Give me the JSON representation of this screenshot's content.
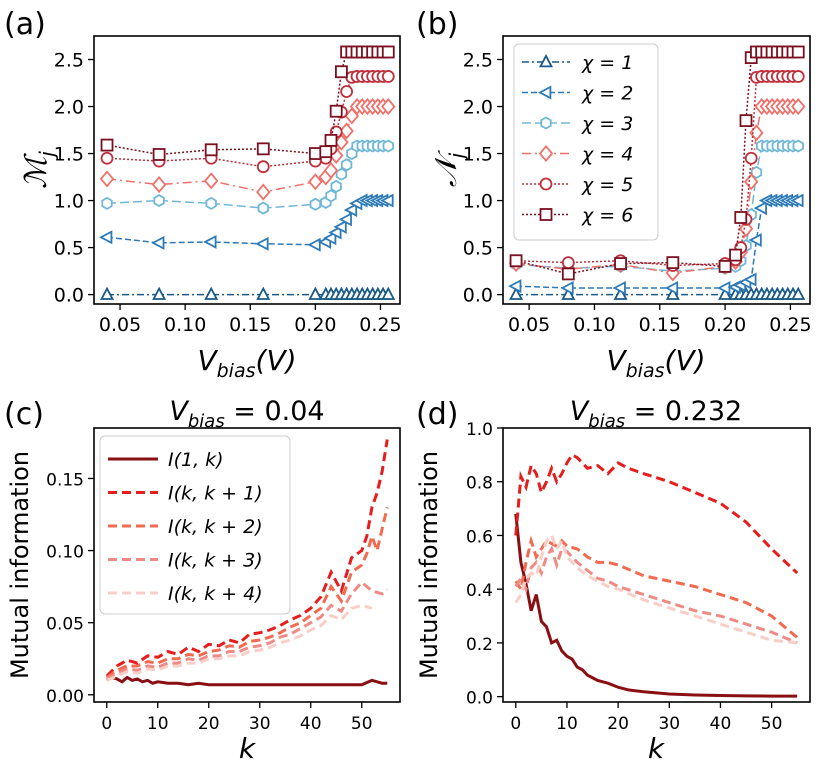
{
  "panel_labels": [
    "(a)",
    "(b)",
    "(c)",
    "(d)"
  ],
  "chart_data": [
    {
      "panel": "(a)",
      "type": "line",
      "xlabel": "V_bias(V)",
      "ylabel": "M_j",
      "xlim": [
        0.03,
        0.265
      ],
      "ylim": [
        -0.1,
        2.75
      ],
      "xticks": [
        0.05,
        0.1,
        0.15,
        0.2,
        0.25
      ],
      "xtick_labels": [
        "0.05",
        "0.10",
        "0.15",
        "0.20",
        "0.25"
      ],
      "yticks": [
        0.0,
        0.5,
        1.0,
        1.5,
        2.0,
        2.5
      ],
      "ytick_labels": [
        "0.0",
        "0.5",
        "1.0",
        "1.5",
        "2.0",
        "2.5"
      ],
      "x": [
        0.04,
        0.08,
        0.12,
        0.16,
        0.2,
        0.208,
        0.212,
        0.216,
        0.22,
        0.224,
        0.228,
        0.232,
        0.236,
        0.24,
        0.244,
        0.248,
        0.252,
        0.256
      ],
      "series": [
        {
          "name": "χ = 1",
          "color": "#1a5a86",
          "dash": "7,3,2,3",
          "marker": "triangle-up",
          "values": [
            0.0,
            0.0,
            0.0,
            0.0,
            0.0,
            0.0,
            0.0,
            0.0,
            0.0,
            0.0,
            0.0,
            0.0,
            0.0,
            0.0,
            0.0,
            0.0,
            0.0,
            0.0
          ]
        },
        {
          "name": "χ = 2",
          "color": "#2c7ab8",
          "dash": "6,3",
          "marker": "triangle-left",
          "values": [
            0.61,
            0.55,
            0.56,
            0.54,
            0.53,
            0.56,
            0.6,
            0.66,
            0.72,
            0.8,
            0.9,
            0.97,
            1.0,
            1.0,
            1.0,
            1.0,
            1.0,
            1.0
          ]
        },
        {
          "name": "χ = 3",
          "color": "#70b8d8",
          "dash": "9,4",
          "marker": "hexagon",
          "values": [
            0.97,
            1.0,
            0.97,
            0.92,
            0.96,
            0.98,
            1.05,
            1.15,
            1.28,
            1.38,
            1.5,
            1.58,
            1.58,
            1.58,
            1.58,
            1.58,
            1.58,
            1.58
          ]
        },
        {
          "name": "χ = 4",
          "color": "#f0706a",
          "dash": "9,4,2,4",
          "marker": "diamond",
          "values": [
            1.23,
            1.17,
            1.21,
            1.09,
            1.2,
            1.25,
            1.32,
            1.48,
            1.62,
            1.74,
            1.9,
            2.0,
            2.0,
            2.0,
            2.0,
            2.0,
            2.0,
            2.0
          ]
        },
        {
          "name": "χ = 5",
          "color": "#c02f3c",
          "dash": "2,2",
          "marker": "circle",
          "values": [
            1.45,
            1.42,
            1.45,
            1.36,
            1.42,
            1.45,
            1.55,
            1.73,
            1.94,
            2.16,
            2.31,
            2.32,
            2.32,
            2.32,
            2.32,
            2.32,
            2.32,
            2.32
          ]
        },
        {
          "name": "χ = 6",
          "color": "#7a1020",
          "dash": "2,2",
          "marker": "square",
          "values": [
            1.59,
            1.49,
            1.54,
            1.55,
            1.5,
            1.52,
            1.64,
            1.95,
            2.37,
            2.58,
            2.58,
            2.58,
            2.58,
            2.58,
            2.58,
            2.58,
            2.58,
            2.58
          ]
        }
      ]
    },
    {
      "panel": "(b)",
      "type": "line",
      "xlabel": "V_bias(V)",
      "ylabel": "N_j",
      "xlim": [
        0.03,
        0.265
      ],
      "ylim": [
        -0.1,
        2.75
      ],
      "xticks": [
        0.05,
        0.1,
        0.15,
        0.2,
        0.25
      ],
      "xtick_labels": [
        "0.05",
        "0.10",
        "0.15",
        "0.20",
        "0.25"
      ],
      "yticks": [
        0.0,
        0.5,
        1.0,
        1.5,
        2.0,
        2.5
      ],
      "ytick_labels": [
        "0.0",
        "0.5",
        "1.0",
        "1.5",
        "2.0",
        "2.5"
      ],
      "legend_position": "top-left",
      "x": [
        0.04,
        0.08,
        0.12,
        0.16,
        0.2,
        0.208,
        0.212,
        0.216,
        0.22,
        0.224,
        0.228,
        0.232,
        0.236,
        0.24,
        0.244,
        0.248,
        0.252,
        0.256
      ],
      "series": [
        {
          "name": "χ = 1",
          "color": "#1a5a86",
          "dash": "7,3,2,3",
          "marker": "triangle-up",
          "values": [
            0.0,
            0.0,
            0.0,
            0.0,
            0.0,
            0.0,
            0.0,
            0.0,
            0.0,
            0.0,
            0.0,
            0.0,
            0.0,
            0.0,
            0.0,
            0.0,
            0.0,
            0.0
          ]
        },
        {
          "name": "χ = 2",
          "color": "#2c7ab8",
          "dash": "6,3",
          "marker": "triangle-left",
          "values": [
            0.09,
            0.07,
            0.07,
            0.07,
            0.07,
            0.08,
            0.1,
            0.13,
            0.16,
            0.58,
            0.92,
            1.0,
            1.0,
            1.0,
            1.0,
            1.0,
            1.0,
            1.0
          ]
        },
        {
          "name": "χ = 3",
          "color": "#70b8d8",
          "dash": "9,4",
          "marker": "hexagon",
          "values": [
            0.32,
            0.28,
            0.3,
            0.25,
            0.28,
            0.3,
            0.36,
            0.52,
            0.85,
            1.3,
            1.58,
            1.58,
            1.58,
            1.58,
            1.58,
            1.58,
            1.58,
            1.58
          ]
        },
        {
          "name": "χ = 4",
          "color": "#f0706a",
          "dash": "9,4,2,4",
          "marker": "diamond",
          "values": [
            0.33,
            0.27,
            0.32,
            0.23,
            0.3,
            0.35,
            0.45,
            0.7,
            1.2,
            1.72,
            2.0,
            2.0,
            2.0,
            2.0,
            2.0,
            2.0,
            2.0,
            2.0
          ]
        },
        {
          "name": "χ = 5",
          "color": "#c02f3c",
          "dash": "2,2",
          "marker": "circle",
          "values": [
            0.36,
            0.34,
            0.36,
            0.31,
            0.33,
            0.37,
            0.5,
            0.8,
            1.45,
            2.31,
            2.32,
            2.32,
            2.32,
            2.32,
            2.32,
            2.32,
            2.32,
            2.32
          ]
        },
        {
          "name": "χ = 6",
          "color": "#7a1020",
          "dash": "2,2",
          "marker": "square",
          "values": [
            0.36,
            0.22,
            0.33,
            0.34,
            0.3,
            0.42,
            0.82,
            1.85,
            2.52,
            2.58,
            2.58,
            2.58,
            2.58,
            2.58,
            2.58,
            2.58,
            2.58,
            2.58
          ]
        }
      ]
    },
    {
      "panel": "(c)",
      "type": "line",
      "title": "V_bias = 0.04",
      "xlabel": "k",
      "ylabel": "Mutual information",
      "xlim": [
        -2.5,
        57.5
      ],
      "ylim": [
        -0.005,
        0.185
      ],
      "xticks": [
        0,
        10,
        20,
        30,
        40,
        50
      ],
      "xtick_labels": [
        "0",
        "10",
        "20",
        "30",
        "40",
        "50"
      ],
      "yticks": [
        0.0,
        0.05,
        0.1,
        0.15
      ],
      "ytick_labels": [
        "0.00",
        "0.05",
        "0.10",
        "0.15"
      ],
      "legend_position": "top-left",
      "series": [
        {
          "name": "I(1, k)",
          "color": "#8a0f12",
          "dash": "",
          "x": [
            0,
            1,
            2,
            3,
            4,
            5,
            6,
            7,
            8,
            9,
            10,
            12,
            14,
            16,
            18,
            20,
            25,
            30,
            35,
            40,
            45,
            50,
            52,
            53,
            54,
            55
          ],
          "values": [
            0.01,
            0.012,
            0.011,
            0.009,
            0.012,
            0.01,
            0.011,
            0.009,
            0.01,
            0.008,
            0.009,
            0.008,
            0.008,
            0.007,
            0.008,
            0.007,
            0.007,
            0.007,
            0.007,
            0.007,
            0.007,
            0.007,
            0.01,
            0.009,
            0.008,
            0.008
          ]
        },
        {
          "name": "I(k, k + 1)",
          "color": "#e61d1d",
          "dash": "9,5",
          "x": [
            0,
            2,
            4,
            6,
            8,
            10,
            12,
            14,
            16,
            18,
            20,
            22,
            24,
            26,
            28,
            30,
            32,
            34,
            36,
            38,
            40,
            42,
            44,
            46,
            48,
            50,
            51,
            52,
            53,
            54,
            55
          ],
          "values": [
            0.013,
            0.02,
            0.024,
            0.022,
            0.027,
            0.026,
            0.03,
            0.028,
            0.033,
            0.03,
            0.035,
            0.034,
            0.038,
            0.036,
            0.042,
            0.043,
            0.045,
            0.048,
            0.052,
            0.055,
            0.06,
            0.068,
            0.085,
            0.072,
            0.095,
            0.1,
            0.11,
            0.13,
            0.14,
            0.155,
            0.177
          ]
        },
        {
          "name": "I(k, k + 2)",
          "color": "#f26a4f",
          "dash": "9,5",
          "x": [
            0,
            2,
            4,
            6,
            8,
            10,
            12,
            14,
            16,
            18,
            20,
            22,
            24,
            26,
            28,
            30,
            32,
            34,
            36,
            38,
            40,
            42,
            44,
            46,
            48,
            50,
            51,
            52,
            53,
            54,
            55
          ],
          "values": [
            0.012,
            0.017,
            0.02,
            0.02,
            0.023,
            0.022,
            0.025,
            0.025,
            0.028,
            0.027,
            0.03,
            0.031,
            0.034,
            0.033,
            0.037,
            0.038,
            0.04,
            0.043,
            0.047,
            0.05,
            0.055,
            0.06,
            0.075,
            0.065,
            0.085,
            0.09,
            0.098,
            0.11,
            0.1,
            0.115,
            0.13
          ]
        },
        {
          "name": "I(k, k + 3)",
          "color": "#ef8a84",
          "dash": "9,5",
          "x": [
            0,
            2,
            4,
            6,
            8,
            10,
            12,
            14,
            16,
            18,
            20,
            22,
            24,
            26,
            28,
            30,
            32,
            34,
            36,
            38,
            40,
            42,
            44,
            46,
            48,
            50,
            52,
            54,
            55
          ],
          "values": [
            0.011,
            0.015,
            0.018,
            0.017,
            0.02,
            0.019,
            0.022,
            0.022,
            0.025,
            0.024,
            0.027,
            0.027,
            0.03,
            0.03,
            0.033,
            0.034,
            0.036,
            0.04,
            0.042,
            0.046,
            0.05,
            0.054,
            0.062,
            0.058,
            0.07,
            0.078,
            0.072,
            0.07,
            0.073
          ]
        },
        {
          "name": "I(k, k + 4)",
          "color": "#f8cfc8",
          "dash": "9,5",
          "x": [
            0,
            2,
            4,
            6,
            8,
            10,
            12,
            14,
            16,
            18,
            20,
            22,
            24,
            26,
            28,
            30,
            32,
            34,
            36,
            38,
            40,
            42,
            44,
            46,
            48,
            50,
            52
          ],
          "values": [
            0.01,
            0.013,
            0.016,
            0.015,
            0.018,
            0.017,
            0.02,
            0.02,
            0.022,
            0.022,
            0.025,
            0.025,
            0.027,
            0.027,
            0.03,
            0.031,
            0.033,
            0.036,
            0.038,
            0.041,
            0.045,
            0.048,
            0.055,
            0.052,
            0.06,
            0.062,
            0.06
          ]
        }
      ]
    },
    {
      "panel": "(d)",
      "type": "line",
      "title": "V_bias = 0.232",
      "xlabel": "k",
      "ylabel": "Mutual information",
      "xlim": [
        -2.5,
        57.5
      ],
      "ylim": [
        -0.02,
        1.0
      ],
      "xticks": [
        0,
        10,
        20,
        30,
        40,
        50
      ],
      "xtick_labels": [
        "0",
        "10",
        "20",
        "30",
        "40",
        "50"
      ],
      "yticks": [
        0.0,
        0.2,
        0.4,
        0.6,
        0.8,
        1.0
      ],
      "ytick_labels": [
        "0.0",
        "0.2",
        "0.4",
        "0.6",
        "0.8",
        "1.0"
      ],
      "series": [
        {
          "name": "I(1, k)",
          "color": "#8a0f12",
          "dash": "",
          "x": [
            0,
            1,
            2,
            3,
            4,
            5,
            6,
            7,
            8,
            9,
            10,
            11,
            12,
            13,
            14,
            16,
            18,
            20,
            22,
            25,
            30,
            35,
            40,
            45,
            50,
            55
          ],
          "values": [
            0.68,
            0.5,
            0.42,
            0.32,
            0.38,
            0.28,
            0.26,
            0.2,
            0.21,
            0.17,
            0.15,
            0.14,
            0.11,
            0.1,
            0.08,
            0.06,
            0.05,
            0.035,
            0.025,
            0.018,
            0.01,
            0.006,
            0.004,
            0.003,
            0.002,
            0.002
          ]
        },
        {
          "name": "I(k, k + 1)",
          "color": "#e61d1d",
          "dash": "9,5",
          "x": [
            0,
            1,
            2,
            3,
            4,
            5,
            6,
            7,
            8,
            9,
            10,
            11,
            12,
            14,
            16,
            18,
            20,
            22,
            25,
            30,
            35,
            40,
            45,
            50,
            55
          ],
          "values": [
            0.6,
            0.82,
            0.78,
            0.86,
            0.83,
            0.76,
            0.8,
            0.85,
            0.8,
            0.83,
            0.87,
            0.9,
            0.89,
            0.85,
            0.86,
            0.83,
            0.87,
            0.85,
            0.83,
            0.8,
            0.76,
            0.72,
            0.65,
            0.55,
            0.46
          ]
        },
        {
          "name": "I(k, k + 2)",
          "color": "#f26a4f",
          "dash": "9,5",
          "x": [
            0,
            1,
            2,
            3,
            4,
            5,
            6,
            7,
            8,
            9,
            10,
            12,
            14,
            16,
            18,
            20,
            25,
            30,
            35,
            40,
            45,
            50,
            55
          ],
          "values": [
            0.43,
            0.4,
            0.5,
            0.58,
            0.52,
            0.55,
            0.58,
            0.57,
            0.56,
            0.58,
            0.56,
            0.55,
            0.52,
            0.5,
            0.5,
            0.49,
            0.45,
            0.43,
            0.41,
            0.38,
            0.35,
            0.3,
            0.22
          ]
        },
        {
          "name": "I(k, k + 3)",
          "color": "#ef8a84",
          "dash": "9,5",
          "x": [
            0,
            1,
            2,
            3,
            4,
            5,
            6,
            7,
            8,
            9,
            10,
            12,
            14,
            16,
            18,
            20,
            25,
            30,
            35,
            40,
            45,
            50,
            55
          ],
          "values": [
            0.41,
            0.44,
            0.4,
            0.48,
            0.5,
            0.46,
            0.52,
            0.55,
            0.49,
            0.55,
            0.54,
            0.5,
            0.47,
            0.44,
            0.43,
            0.41,
            0.38,
            0.35,
            0.32,
            0.3,
            0.27,
            0.24,
            0.2
          ]
        },
        {
          "name": "I(k, k + 4)",
          "color": "#f8cfc8",
          "dash": "9,5",
          "x": [
            0,
            1,
            2,
            3,
            4,
            5,
            6,
            7,
            8,
            9,
            10,
            12,
            14,
            16,
            18,
            20,
            25,
            30,
            35,
            40,
            45,
            50,
            55
          ],
          "values": [
            0.35,
            0.38,
            0.44,
            0.46,
            0.45,
            0.52,
            0.58,
            0.6,
            0.55,
            0.58,
            0.52,
            0.48,
            0.45,
            0.43,
            0.41,
            0.4,
            0.36,
            0.33,
            0.3,
            0.27,
            0.24,
            0.21,
            0.2
          ]
        }
      ]
    }
  ]
}
